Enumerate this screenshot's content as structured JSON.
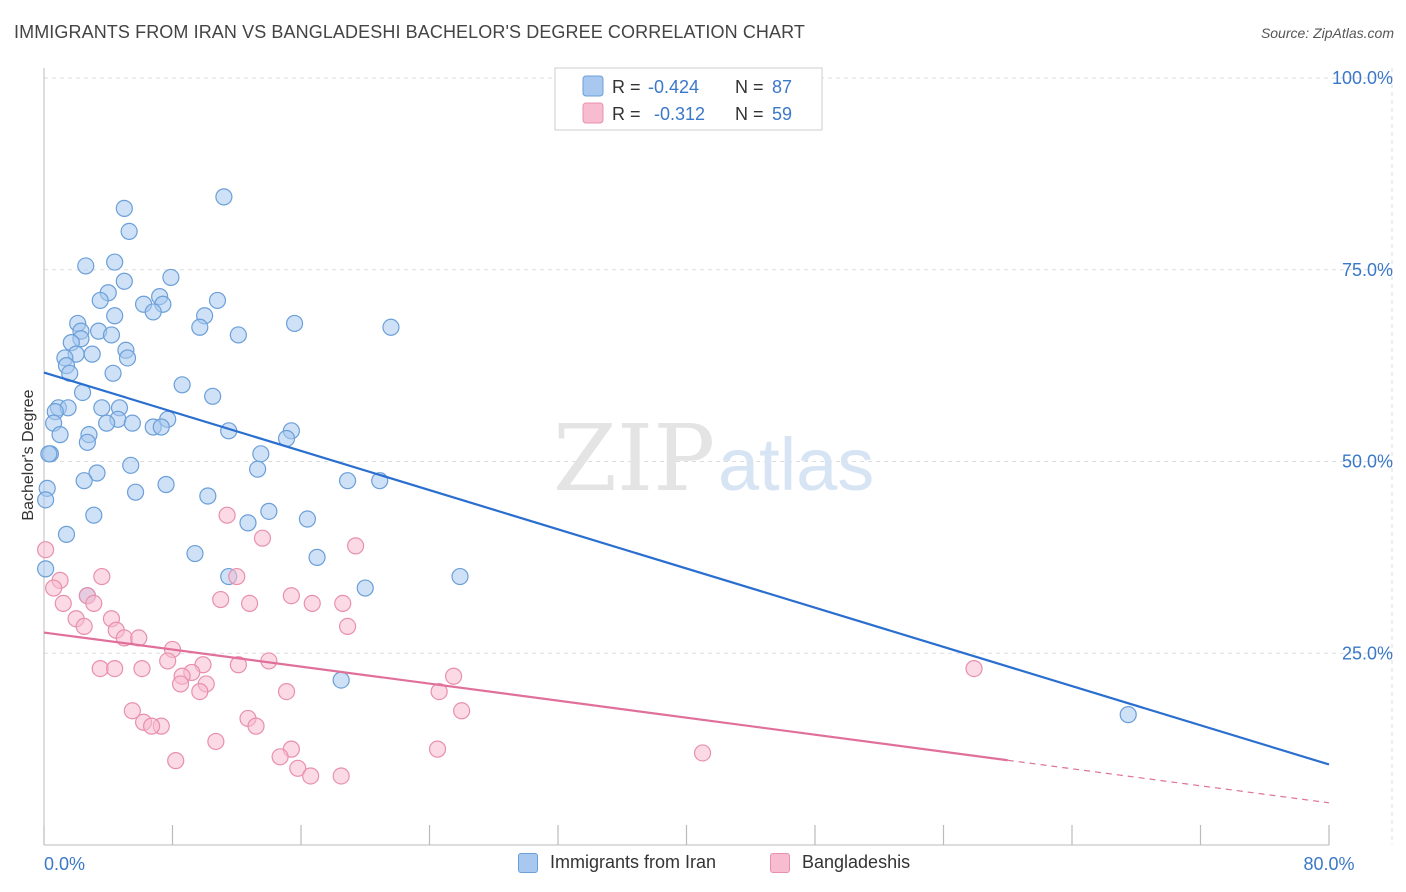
{
  "header": {
    "title": "IMMIGRANTS FROM IRAN VS BANGLADESHI BACHELOR'S DEGREE CORRELATION CHART",
    "source": "Source: ZipAtlas.com"
  },
  "watermark": {
    "zip": "ZIP",
    "atlas": "atlas"
  },
  "legend_top": {
    "rows": [
      {
        "r_label": "R =",
        "r_value": "-0.424",
        "n_label": "N =",
        "n_value": "87"
      },
      {
        "r_label": "R =",
        "r_value": "-0.312",
        "n_label": "N =",
        "n_value": "59"
      }
    ]
  },
  "legend_bottom": {
    "items": [
      {
        "label": "Immigrants from Iran"
      },
      {
        "label": "Bangladeshis"
      }
    ]
  },
  "colors": {
    "iran_fill": "#a8c8f0",
    "iran_stroke": "#6b9fd8",
    "iran_line": "#2a6fcf",
    "bangla_fill": "#f8bcd0",
    "bangla_stroke": "#e890ac",
    "bangla_line": "#e0709a",
    "axis_text": "#3a78c8",
    "grid": "#dddddd"
  },
  "chart_data": {
    "type": "scatter",
    "ylabel": "Bachelor's Degree",
    "xlim": [
      0,
      80
    ],
    "ylim": [
      0,
      100
    ],
    "x_tick_labels": [
      {
        "value": 0,
        "label": "0.0%"
      },
      {
        "value": 80,
        "label": "80.0%"
      }
    ],
    "x_minor_ticks": [
      0,
      8,
      16,
      24,
      32,
      40,
      48,
      56,
      64,
      72,
      80
    ],
    "y_ticks": [
      {
        "value": 25,
        "label": "25.0%"
      },
      {
        "value": 50,
        "label": "50.0%"
      },
      {
        "value": 75,
        "label": "75.0%"
      },
      {
        "value": 100,
        "label": "100.0%"
      }
    ],
    "grid": true,
    "series": [
      {
        "name": "Immigrants from Iran",
        "color_key": "iran",
        "trend": {
          "x0": 0,
          "y0": 61.6,
          "x1": 80,
          "y1": 10.5,
          "solid_until": 80
        },
        "points": [
          [
            5.0,
            83.0
          ],
          [
            11.2,
            84.5
          ],
          [
            5.3,
            80.0
          ],
          [
            2.6,
            75.5
          ],
          [
            4.4,
            76.0
          ],
          [
            7.9,
            74.0
          ],
          [
            5.0,
            73.5
          ],
          [
            4.0,
            72.0
          ],
          [
            3.5,
            71.0
          ],
          [
            6.2,
            70.5
          ],
          [
            7.2,
            71.5
          ],
          [
            7.4,
            70.5
          ],
          [
            10.8,
            71.0
          ],
          [
            6.8,
            69.5
          ],
          [
            10.0,
            69.0
          ],
          [
            4.4,
            69.0
          ],
          [
            15.6,
            68.0
          ],
          [
            21.6,
            67.5
          ],
          [
            2.1,
            68.0
          ],
          [
            2.3,
            67.0
          ],
          [
            3.4,
            67.0
          ],
          [
            4.2,
            66.5
          ],
          [
            9.7,
            67.5
          ],
          [
            12.1,
            66.5
          ],
          [
            2.3,
            66.0
          ],
          [
            1.7,
            65.5
          ],
          [
            5.1,
            64.5
          ],
          [
            2.0,
            64.0
          ],
          [
            3.0,
            64.0
          ],
          [
            1.3,
            63.5
          ],
          [
            5.2,
            63.5
          ],
          [
            1.4,
            62.5
          ],
          [
            1.6,
            61.5
          ],
          [
            4.3,
            61.5
          ],
          [
            8.6,
            60.0
          ],
          [
            2.4,
            59.0
          ],
          [
            10.5,
            58.5
          ],
          [
            0.9,
            57.0
          ],
          [
            1.5,
            57.0
          ],
          [
            0.7,
            56.5
          ],
          [
            3.6,
            57.0
          ],
          [
            4.7,
            57.0
          ],
          [
            4.6,
            55.5
          ],
          [
            7.7,
            55.5
          ],
          [
            0.6,
            55.0
          ],
          [
            3.9,
            55.0
          ],
          [
            5.5,
            55.0
          ],
          [
            6.8,
            54.5
          ],
          [
            7.3,
            54.5
          ],
          [
            1.0,
            53.5
          ],
          [
            2.8,
            53.5
          ],
          [
            11.5,
            54.0
          ],
          [
            15.4,
            54.0
          ],
          [
            15.1,
            53.0
          ],
          [
            2.7,
            52.5
          ],
          [
            0.4,
            51.0
          ],
          [
            0.3,
            51.0
          ],
          [
            13.5,
            51.0
          ],
          [
            5.4,
            49.5
          ],
          [
            13.3,
            49.0
          ],
          [
            3.3,
            48.5
          ],
          [
            2.5,
            47.5
          ],
          [
            18.9,
            47.5
          ],
          [
            20.9,
            47.5
          ],
          [
            7.6,
            47.0
          ],
          [
            0.2,
            46.5
          ],
          [
            5.7,
            46.0
          ],
          [
            10.2,
            45.5
          ],
          [
            0.1,
            45.0
          ],
          [
            14.0,
            43.5
          ],
          [
            3.1,
            43.0
          ],
          [
            16.4,
            42.5
          ],
          [
            12.7,
            42.0
          ],
          [
            1.4,
            40.5
          ],
          [
            9.4,
            38.0
          ],
          [
            17.0,
            37.5
          ],
          [
            0.1,
            36.0
          ],
          [
            11.5,
            35.0
          ],
          [
            25.9,
            35.0
          ],
          [
            20.0,
            33.5
          ],
          [
            2.7,
            32.5
          ],
          [
            18.5,
            21.5
          ],
          [
            67.5,
            17.0
          ]
        ]
      },
      {
        "name": "Bangladeshis",
        "color_key": "bangla",
        "trend": {
          "x0": 0,
          "y0": 27.7,
          "x1": 80,
          "y1": 5.5,
          "solid_until": 60
        },
        "points": [
          [
            0.1,
            38.5
          ],
          [
            11.4,
            43.0
          ],
          [
            13.6,
            40.0
          ],
          [
            19.4,
            39.0
          ],
          [
            3.6,
            35.0
          ],
          [
            1.0,
            34.5
          ],
          [
            12.0,
            35.0
          ],
          [
            0.6,
            33.5
          ],
          [
            2.7,
            32.5
          ],
          [
            15.4,
            32.5
          ],
          [
            11.0,
            32.0
          ],
          [
            12.8,
            31.5
          ],
          [
            16.7,
            31.5
          ],
          [
            18.6,
            31.5
          ],
          [
            1.2,
            31.5
          ],
          [
            3.1,
            31.5
          ],
          [
            2.0,
            29.5
          ],
          [
            4.2,
            29.5
          ],
          [
            4.5,
            28.0
          ],
          [
            2.5,
            28.5
          ],
          [
            18.9,
            28.5
          ],
          [
            5.0,
            27.0
          ],
          [
            5.9,
            27.0
          ],
          [
            8.0,
            25.5
          ],
          [
            7.7,
            24.0
          ],
          [
            14.0,
            24.0
          ],
          [
            9.9,
            23.5
          ],
          [
            12.1,
            23.5
          ],
          [
            3.5,
            23.0
          ],
          [
            4.4,
            23.0
          ],
          [
            6.1,
            23.0
          ],
          [
            9.2,
            22.5
          ],
          [
            8.6,
            22.0
          ],
          [
            10.1,
            21.0
          ],
          [
            8.5,
            21.0
          ],
          [
            25.5,
            22.0
          ],
          [
            9.7,
            20.0
          ],
          [
            15.1,
            20.0
          ],
          [
            24.6,
            20.0
          ],
          [
            26.0,
            17.5
          ],
          [
            5.5,
            17.5
          ],
          [
            12.7,
            16.5
          ],
          [
            6.2,
            16.0
          ],
          [
            7.3,
            15.5
          ],
          [
            6.7,
            15.5
          ],
          [
            13.2,
            15.5
          ],
          [
            10.7,
            13.5
          ],
          [
            15.4,
            12.5
          ],
          [
            24.5,
            12.5
          ],
          [
            41.0,
            12.0
          ],
          [
            14.7,
            11.5
          ],
          [
            8.2,
            11.0
          ],
          [
            15.8,
            10.0
          ],
          [
            16.6,
            9.0
          ],
          [
            18.5,
            9.0
          ],
          [
            57.9,
            23.0
          ]
        ]
      }
    ]
  }
}
